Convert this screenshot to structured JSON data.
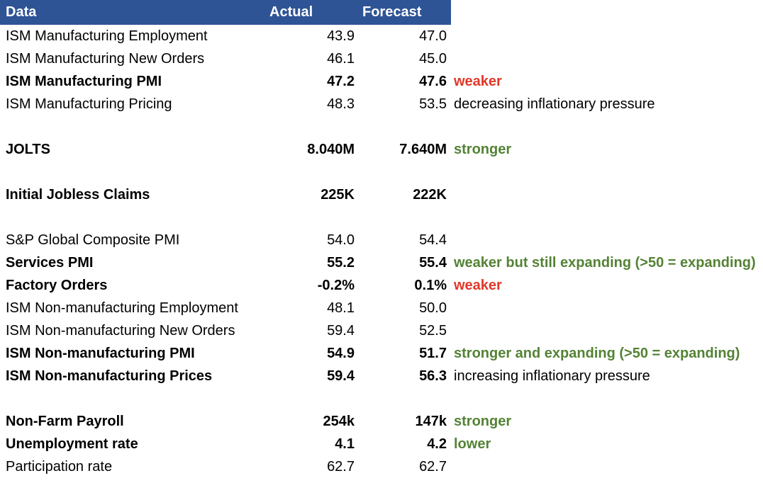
{
  "header": {
    "data_label": "Data",
    "actual_label": "Actual",
    "forecast_label": "Forecast"
  },
  "colors": {
    "header_bg": "#2F5496",
    "header_text": "#FFFFFF",
    "note_red": "#E0382A",
    "note_green": "#548235"
  },
  "rows": [
    {
      "name": "ISM Manufacturing Employment",
      "actual": "43.9",
      "forecast": "47.0",
      "note": "",
      "bold": false,
      "note_style": ""
    },
    {
      "name": "ISM Manufacturing New Orders",
      "actual": "46.1",
      "forecast": "45.0",
      "note": "",
      "bold": false,
      "note_style": ""
    },
    {
      "name": "ISM Manufacturing PMI",
      "actual": "47.2",
      "forecast": "47.6",
      "note": "weaker",
      "bold": true,
      "note_style": "red"
    },
    {
      "name": "ISM Manufacturing Pricing",
      "actual": "48.3",
      "forecast": "53.5",
      "note": "decreasing inflationary pressure",
      "bold": false,
      "note_style": "plain"
    },
    {
      "name": "",
      "actual": "",
      "forecast": "",
      "note": "",
      "bold": false,
      "note_style": ""
    },
    {
      "name": "JOLTS",
      "actual": "8.040M",
      "forecast": "7.640M",
      "note": "stronger",
      "bold": true,
      "note_style": "green"
    },
    {
      "name": "",
      "actual": "",
      "forecast": "",
      "note": "",
      "bold": false,
      "note_style": ""
    },
    {
      "name": "Initial Jobless Claims",
      "actual": "225K",
      "forecast": "222K",
      "note": "",
      "bold": true,
      "note_style": ""
    },
    {
      "name": "",
      "actual": "",
      "forecast": "",
      "note": "",
      "bold": false,
      "note_style": ""
    },
    {
      "name": "S&P Global Composite PMI",
      "actual": "54.0",
      "forecast": "54.4",
      "note": "",
      "bold": false,
      "note_style": ""
    },
    {
      "name": "Services PMI",
      "actual": "55.2",
      "forecast": "55.4",
      "note": "weaker but still expanding (>50 = expanding)",
      "bold": true,
      "note_style": "green"
    },
    {
      "name": "Factory Orders",
      "actual": "-0.2%",
      "forecast": "0.1%",
      "note": "weaker",
      "bold": true,
      "note_style": "red"
    },
    {
      "name": "ISM Non-manufacturing Employment",
      "actual": "48.1",
      "forecast": "50.0",
      "note": "",
      "bold": false,
      "note_style": ""
    },
    {
      "name": "ISM Non-manufacturing New Orders",
      "actual": "59.4",
      "forecast": "52.5",
      "note": "",
      "bold": false,
      "note_style": ""
    },
    {
      "name": "ISM Non-manufacturing PMI",
      "actual": "54.9",
      "forecast": "51.7",
      "note": "stronger and expanding  (>50 = expanding)",
      "bold": true,
      "note_style": "green"
    },
    {
      "name": "ISM Non-manufacturing Prices",
      "actual": "59.4",
      "forecast": "56.3",
      "note": "increasing inflationary pressure",
      "bold": true,
      "note_style": "plain"
    },
    {
      "name": "",
      "actual": "",
      "forecast": "",
      "note": "",
      "bold": false,
      "note_style": ""
    },
    {
      "name": "Non-Farm Payroll",
      "actual": "254k",
      "forecast": "147k",
      "note": "stronger",
      "bold": true,
      "note_style": "green"
    },
    {
      "name": "Unemployment rate",
      "actual": "4.1",
      "forecast": "4.2",
      "note": "lower",
      "bold": true,
      "note_style": "green"
    },
    {
      "name": "Participation rate",
      "actual": "62.7",
      "forecast": "62.7",
      "note": "",
      "bold": false,
      "note_style": ""
    }
  ]
}
